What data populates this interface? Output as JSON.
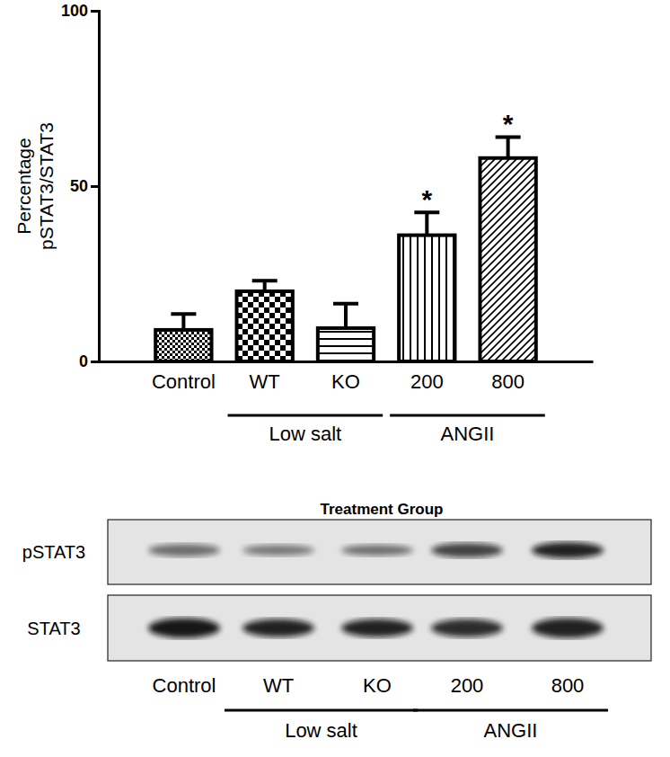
{
  "chart_data": {
    "type": "bar",
    "categories": [
      "Control",
      "WT",
      "KO",
      "200",
      "800"
    ],
    "values": [
      9,
      20,
      9.5,
      36,
      58
    ],
    "errors": [
      4.5,
      3,
      7,
      6.5,
      6
    ],
    "color": "#000000",
    "ylabel": [
      "Percentage",
      "pSTAT3/STAT3"
    ],
    "ylim": [
      0,
      100
    ],
    "yticks": [
      0,
      50,
      100
    ],
    "groups": [
      {
        "label": "Low salt",
        "categories": [
          "WT",
          "KO"
        ]
      },
      {
        "label": "ANGII",
        "categories": [
          "200",
          "800"
        ]
      }
    ],
    "annotations": [
      {
        "text": "*",
        "x": "200"
      },
      {
        "text": "*",
        "x": "800"
      }
    ]
  },
  "blot": {
    "title": "Treatment Group",
    "rows": [
      "pSTAT3",
      "STAT3"
    ],
    "lanes": [
      "Control",
      "WT",
      "KO",
      "200",
      "800"
    ],
    "groups": [
      {
        "label": "Low salt",
        "lanes": [
          "WT",
          "KO"
        ]
      },
      {
        "label": "ANGII",
        "lanes": [
          "200",
          "800"
        ]
      }
    ]
  }
}
